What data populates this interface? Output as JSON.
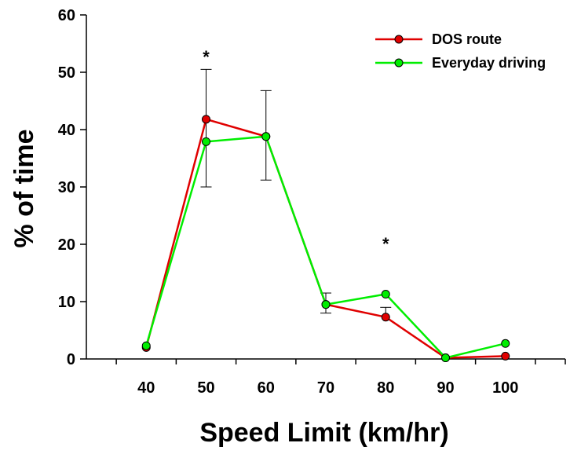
{
  "chart_data": {
    "type": "line",
    "xlabel": "Speed Limit (km/hr)",
    "ylabel": "% of time",
    "xlim": [
      30,
      110
    ],
    "ylim": [
      0,
      60
    ],
    "x_ticks": [
      40,
      50,
      60,
      70,
      80,
      90,
      100
    ],
    "y_ticks": [
      0,
      10,
      20,
      30,
      40,
      50,
      60
    ],
    "grid": false,
    "legend_position": "top-right",
    "series": [
      {
        "name": "DOS route",
        "color": "#e00000",
        "x": [
          40,
          50,
          60,
          70,
          80,
          90,
          100
        ],
        "values": [
          2.0,
          41.8,
          38.8,
          9.5,
          7.3,
          0.2,
          0.5
        ],
        "error_upper": [
          null,
          50.5,
          46.8,
          11.5,
          9.0,
          null,
          null
        ],
        "error_lower": [
          null,
          30.0,
          31.2,
          8.0,
          null,
          null,
          null
        ]
      },
      {
        "name": "Everyday driving",
        "color": "#00ee00",
        "x": [
          40,
          50,
          60,
          70,
          80,
          90,
          100
        ],
        "values": [
          2.3,
          37.9,
          38.8,
          9.5,
          11.3,
          0.2,
          2.7
        ]
      }
    ],
    "annotations": [
      {
        "text": "*",
        "x": 50
      },
      {
        "text": "*",
        "x": 80
      }
    ]
  }
}
